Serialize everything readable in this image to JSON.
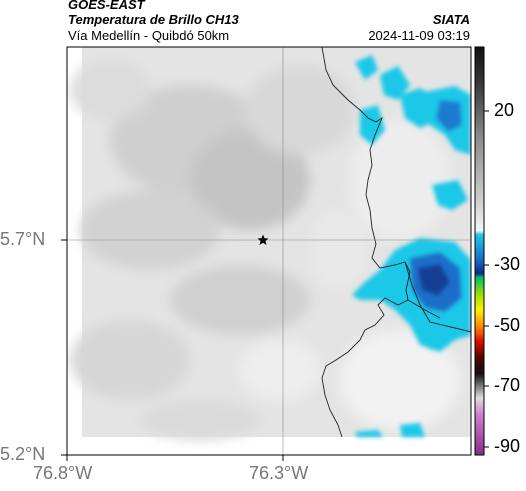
{
  "header": {
    "satellite": "GOES-EAST",
    "product": "Temperatura de Brillo CH13",
    "organization": "SIATA",
    "region": "Vía Medellín - Quibdó 50km",
    "timestamp": "2024-11-09 03:19"
  },
  "map": {
    "lat_labels": [
      "5.7°N",
      "5.2°N"
    ],
    "lon_labels": [
      "76.8°W",
      "76.3°W"
    ],
    "marker": {
      "label": "",
      "icon": "star-icon"
    }
  },
  "colorbar": {
    "labels": [
      "20",
      "-30",
      "-50",
      "-70",
      "-90"
    ],
    "units": ""
  }
}
